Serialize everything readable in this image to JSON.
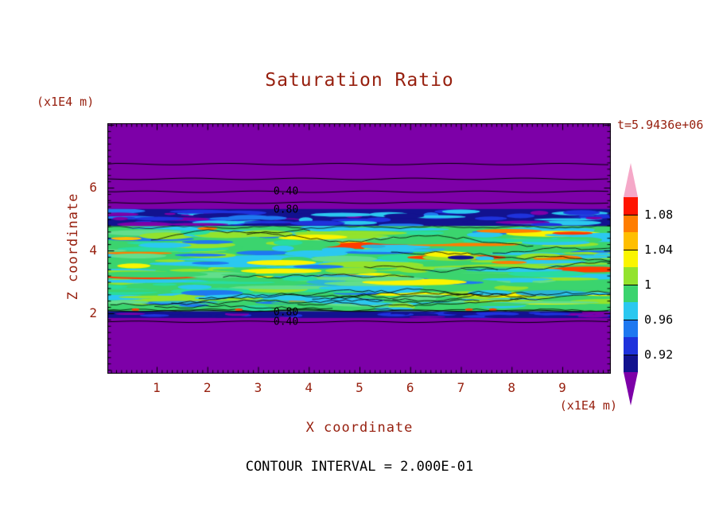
{
  "colors": {
    "accent_text": "#97200F",
    "label_text": "#000000",
    "frame": "#000000",
    "background": "#FFFFFF",
    "purple": "#7D00A8",
    "navy": "#12128F",
    "green": "#3BD46E"
  },
  "header": {
    "title": "Saturation Ratio",
    "time_label": "t=5.9436e+06"
  },
  "axes": {
    "x_label": "X coordinate",
    "y_label": "Z coordinate",
    "x_unit": "(x1E4 m)",
    "y_unit": "(x1E4 m)"
  },
  "footer": {
    "contour_interval_label": "CONTOUR INTERVAL = 2.000E-01"
  },
  "chart_data": {
    "type": "heatmap",
    "title": "Saturation Ratio",
    "xlabel": "X coordinate",
    "ylabel": "Z coordinate",
    "x_unit": "(x1E4 m)",
    "y_unit": "(x1E4 m)",
    "xlim": [
      0,
      9.95
    ],
    "ylim": [
      0,
      8.05
    ],
    "x_ticks": [
      1,
      2,
      3,
      4,
      5,
      6,
      7,
      8,
      9
    ],
    "y_ticks": [
      2,
      4,
      6
    ],
    "x_minor_step": 0.1,
    "y_minor_step": 0.2,
    "grid": false,
    "time_label": "t=5.9436e+06",
    "contour_interval": 0.2,
    "legend_position": "right",
    "colorbar": {
      "tick_labels": [
        "1.08",
        "1.04",
        "1",
        "0.96",
        "0.92"
      ],
      "segment_ranges": [
        [
          1.08,
          1.1
        ],
        [
          1.06,
          1.08
        ],
        [
          1.04,
          1.06
        ],
        [
          1.02,
          1.04
        ],
        [
          1.0,
          1.02
        ],
        [
          0.98,
          1.0
        ],
        [
          0.96,
          0.98
        ],
        [
          0.94,
          0.96
        ],
        [
          0.92,
          0.94
        ],
        [
          0.9,
          0.92
        ]
      ],
      "segment_colors": [
        "#FF1400",
        "#FF7D00",
        "#FFBE00",
        "#FAF500",
        "#93E32D",
        "#3BD46E",
        "#2BC8F0",
        "#1E78F0",
        "#1E32DC",
        "#12128F"
      ],
      "over_color": "#F5A8C8",
      "under_color": "#7D00A8"
    },
    "field_bands": [
      {
        "z": [
          5.32,
          8.05
        ],
        "saturation": "< 0.2",
        "color": "#7D00A8"
      },
      {
        "z": [
          4.78,
          5.32
        ],
        "saturation": "0.90 - 0.92",
        "color": "#12128F"
      },
      {
        "z": [
          2.06,
          4.78
        ],
        "saturation": "0.96 - 1.04 mottled around 1",
        "color": "#3BD46E"
      },
      {
        "z": [
          1.85,
          2.06
        ],
        "saturation": "0.90 - 0.92",
        "color": "#12128F"
      },
      {
        "z": [
          0,
          1.85
        ],
        "saturation": "< 0.2",
        "color": "#7D00A8"
      }
    ],
    "contour_lines": [
      {
        "z": 6.75
      },
      {
        "z": 6.28
      },
      {
        "z": 5.87
      },
      {
        "z": 5.52
      },
      {
        "z": 2.08
      },
      {
        "z": 1.73
      }
    ],
    "contour_labels": [
      {
        "text": "0.40",
        "x": 3.55,
        "z": 5.87
      },
      {
        "text": "0.80",
        "x": 3.55,
        "z": 5.3
      },
      {
        "text": "0.80",
        "x": 3.55,
        "z": 2.03
      },
      {
        "text": "0.40",
        "x": 3.55,
        "z": 1.73
      }
    ],
    "hot_streaks": [
      {
        "x": [
          7.3,
          8.6
        ],
        "z": 4.62,
        "color": "#FF7D00",
        "h": 5
      },
      {
        "x": [
          7.6,
          8.3
        ],
        "z": 3.62,
        "color": "#FF7D00",
        "h": 4
      },
      {
        "x": [
          0.1,
          0.7
        ],
        "z": 4.38,
        "color": "#FFBE00",
        "h": 4
      },
      {
        "x": [
          1.8,
          2.2
        ],
        "z": 4.7,
        "color": "#FF7D00",
        "h": 4
      },
      {
        "x": [
          3.4,
          4.5
        ],
        "z": 4.4,
        "color": "#FAF500",
        "h": 5
      },
      {
        "x": [
          8.8,
          9.6
        ],
        "z": 4.55,
        "color": "#FF3C00",
        "h": 4
      }
    ],
    "bottom_specks": [
      {
        "x": 0.58
      },
      {
        "x": 2.62
      },
      {
        "x": 7.16
      },
      {
        "x": 7.63
      }
    ],
    "texture": {
      "seed": 20,
      "patches": 270,
      "palette": [
        [
          "#2BC8F0",
          22
        ],
        [
          "#93E32D",
          20
        ],
        [
          "#3BD46E",
          16
        ],
        [
          "#28DCA0",
          12
        ],
        [
          "#63DE8C",
          10
        ],
        [
          "#FAF500",
          7
        ],
        [
          "#1E78F0",
          5
        ],
        [
          "#2BB4D8",
          4
        ],
        [
          "#FF7D00",
          2
        ],
        [
          "#FF3C00",
          1
        ],
        [
          "#12128F",
          1
        ]
      ]
    }
  }
}
